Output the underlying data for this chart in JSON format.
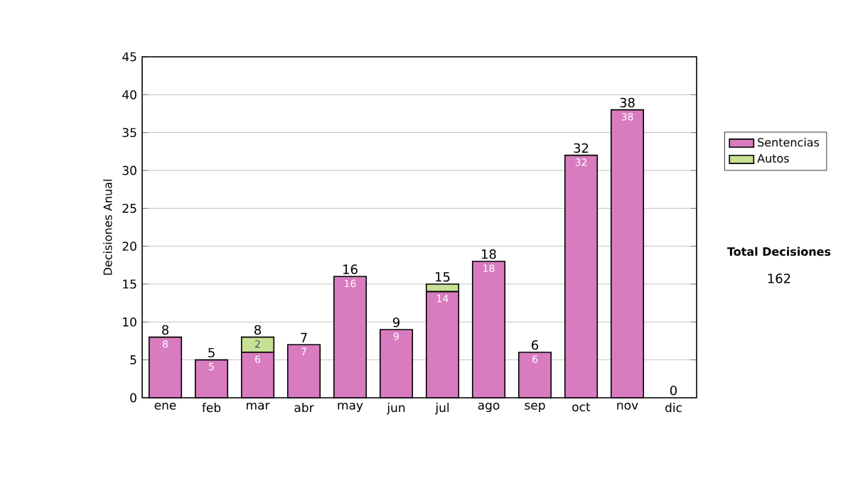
{
  "chart_data": {
    "type": "bar",
    "stacked": true,
    "ylabel": "Decisiones Anual",
    "categories": [
      "ene",
      "feb",
      "mar",
      "abr",
      "may",
      "jun",
      "jul",
      "ago",
      "sep",
      "oct",
      "nov",
      "dic"
    ],
    "series": [
      {
        "name": "Sentencias",
        "color": "#d87cbf",
        "values": [
          8,
          5,
          6,
          7,
          16,
          9,
          14,
          18,
          6,
          32,
          38,
          0
        ],
        "value_labels": [
          "8",
          "5",
          "6",
          "7",
          "16",
          "9",
          "14",
          "18",
          "6",
          "32",
          "38",
          null
        ]
      },
      {
        "name": "Autos",
        "color": "#c6e096",
        "values": [
          0,
          0,
          2,
          0,
          0,
          0,
          1,
          0,
          0,
          0,
          0,
          0
        ],
        "value_labels": [
          null,
          null,
          "2",
          null,
          null,
          null,
          null,
          null,
          null,
          null,
          null,
          null
        ]
      }
    ],
    "totals": [
      "8",
      "5",
      "8",
      "7",
      "16",
      "9",
      "15",
      "18",
      "6",
      "32",
      "38",
      "0"
    ],
    "ylim": [
      0,
      45
    ],
    "yticks": [
      0,
      5,
      10,
      15,
      20,
      25,
      30,
      35,
      40,
      45
    ],
    "grid": "y",
    "legend": "right",
    "annotations": [
      "Total Decisiones",
      "162"
    ]
  }
}
